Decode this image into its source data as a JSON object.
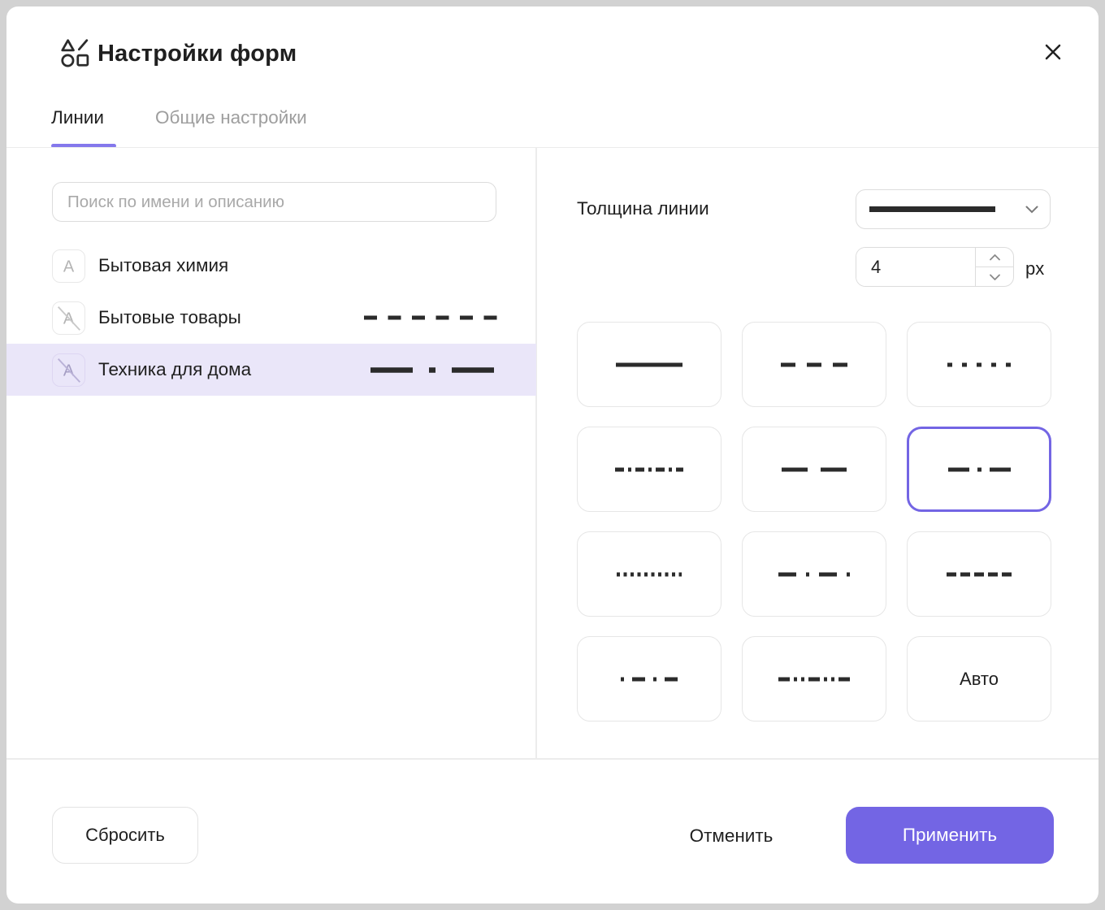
{
  "window": {
    "title": "Настройки форм"
  },
  "tabs": [
    {
      "label": "Линии",
      "active": true
    },
    {
      "label": "Общие настройки",
      "active": false
    }
  ],
  "search": {
    "placeholder": "Поиск по имени и описанию",
    "value": ""
  },
  "list": {
    "items": [
      {
        "label": "Бытовая химия",
        "icon": "label-a",
        "slashed": false,
        "selected": false,
        "preview": null
      },
      {
        "label": "Бытовые товары",
        "icon": "label-a-slashed",
        "slashed": true,
        "selected": false,
        "preview": {
          "dasharray": "16 13.5",
          "length": 164,
          "thickness": 5
        }
      },
      {
        "label": "Техника для дома",
        "icon": "label-a-slashed",
        "slashed": true,
        "selected": true,
        "preview": {
          "dasharray": "52 20 8 20",
          "length": 152,
          "thickness": 6.5
        }
      }
    ]
  },
  "thickness": {
    "label": "Толщина линии",
    "dropdown_preview": "solid-thick-line",
    "value": "4",
    "unit": "px"
  },
  "line_styles": {
    "selected_index": 5,
    "cards": [
      {
        "name": "solid",
        "dasharray": "none",
        "length": 82,
        "selected": false
      },
      {
        "name": "dashed",
        "dasharray": "18 14",
        "length": 82,
        "selected": false
      },
      {
        "name": "dotted",
        "dasharray": "6 12",
        "length": 78,
        "selected": false
      },
      {
        "name": "dash-dot-small",
        "dasharray": "11 5 4 5",
        "length": 84,
        "selected": false
      },
      {
        "name": "long-dash",
        "dasharray": "32 16",
        "length": 80,
        "selected": false
      },
      {
        "name": "dash-dot",
        "dasharray": "26 10 5 10",
        "length": 77,
        "selected": true
      },
      {
        "name": "dense-dotted",
        "dasharray": "4 4.5",
        "length": 80,
        "selected": false
      },
      {
        "name": "dash-dot-dot",
        "dasharray": "22 12 4 12",
        "length": 88,
        "selected": false
      },
      {
        "name": "medium-dashed",
        "dasharray": "12 5",
        "length": 80,
        "selected": false
      },
      {
        "name": "dot-dash",
        "dasharray": "4 10 16 10",
        "length": 70,
        "selected": false
      },
      {
        "name": "dash-dot-dot-repeat",
        "dasharray": "14 5 4 5 4 5",
        "length": 88,
        "selected": false
      },
      {
        "name": "auto",
        "label": "Авто",
        "selected": false
      }
    ]
  },
  "footer": {
    "reset": "Сбросить",
    "cancel": "Отменить",
    "apply": "Применить"
  },
  "colors": {
    "accent": "#7365e4",
    "tab_underline": "#8478ec",
    "selected_row_bg": "#eae6f9",
    "line": "#2b2b2b"
  }
}
